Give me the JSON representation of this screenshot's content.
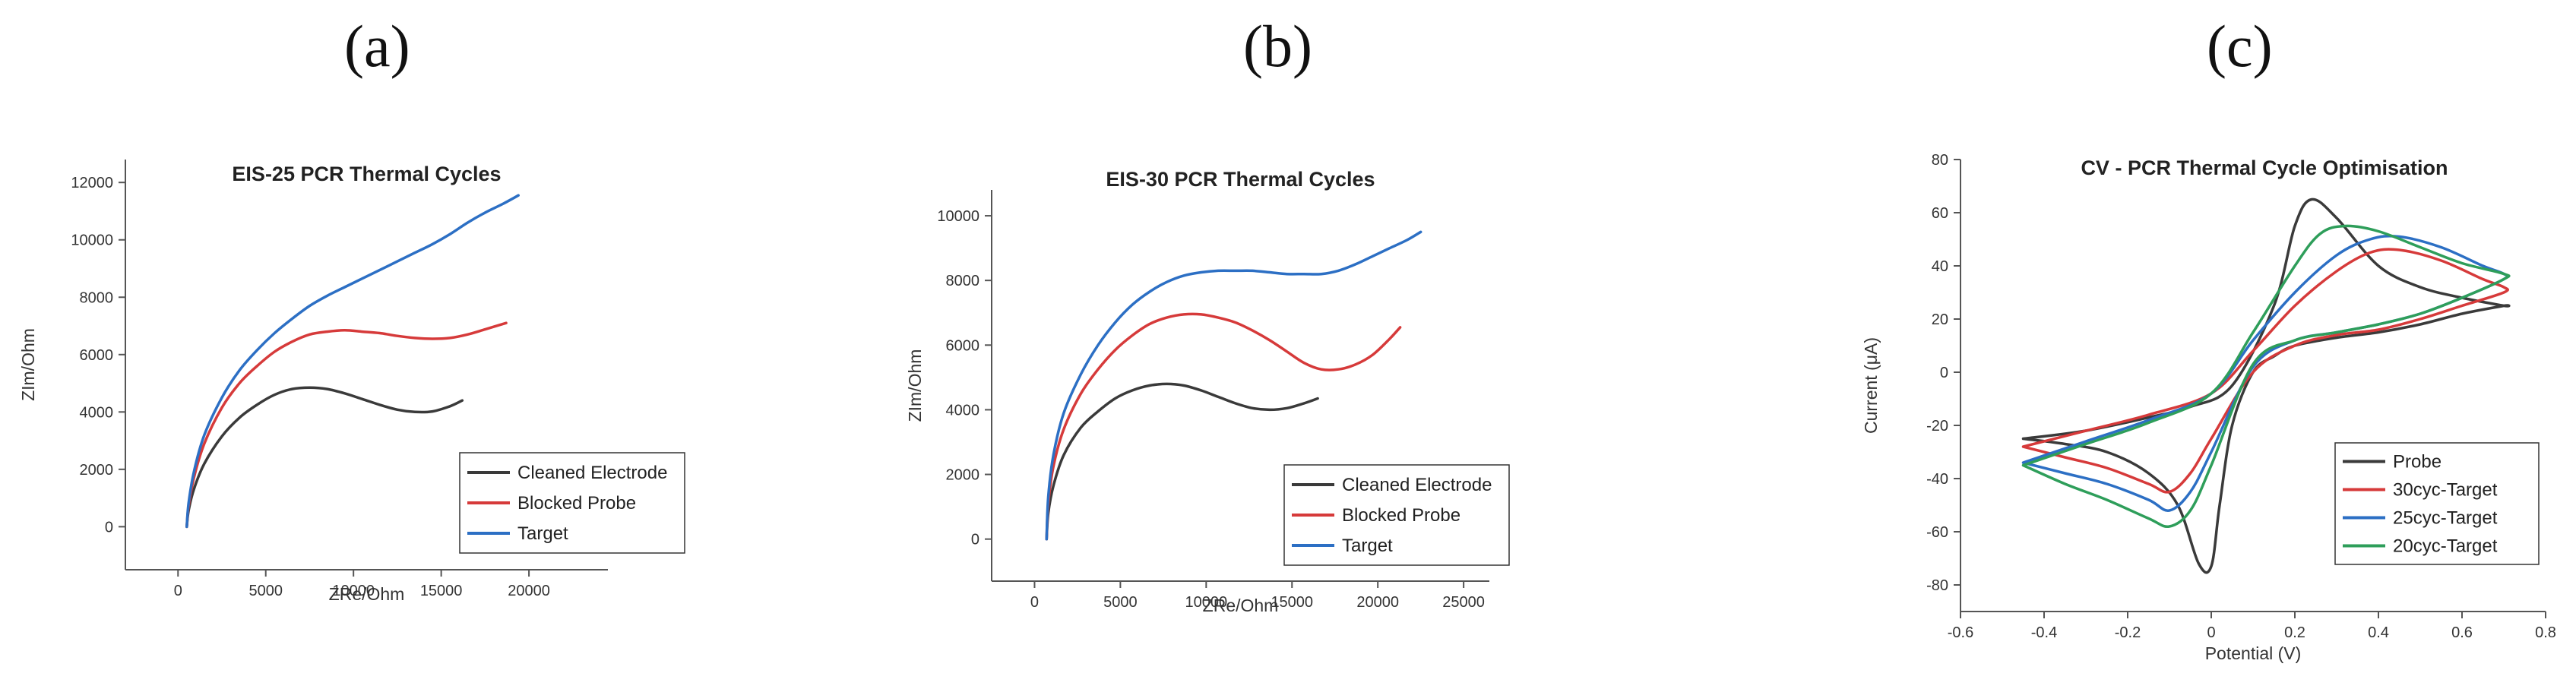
{
  "chart_data": [
    {
      "panel": "(a)",
      "type": "line",
      "title": "EIS-25 PCR Thermal Cycles",
      "xlabel": "ZRe/Ohm",
      "ylabel": "ZIm/Ohm",
      "xlim": [
        -3000,
        24500
      ],
      "ylim": [
        -1500,
        12800
      ],
      "xticks": [
        0,
        5000,
        10000,
        15000,
        20000
      ],
      "yticks": [
        0,
        2000,
        4000,
        6000,
        8000,
        10000,
        12000
      ],
      "series": [
        {
          "name": "Cleaned Electrode",
          "color": "#3a3a3a",
          "x": [
            500,
            600,
            900,
            1500,
            2500,
            3500,
            4500,
            5500,
            6500,
            7500,
            8500,
            9500,
            10500,
            11500,
            12500,
            13500,
            14500,
            15500,
            16200
          ],
          "y": [
            0,
            550,
            1300,
            2200,
            3150,
            3800,
            4250,
            4600,
            4800,
            4850,
            4800,
            4650,
            4450,
            4250,
            4080,
            4000,
            4020,
            4200,
            4400
          ]
        },
        {
          "name": "Blocked Probe",
          "color": "#d63a3a",
          "x": [
            500,
            600,
            900,
            1500,
            2500,
            3500,
            4500,
            5500,
            6500,
            7500,
            8500,
            9500,
            10500,
            11500,
            12500,
            13500,
            14500,
            15500,
            16500,
            17500,
            18700
          ],
          "y": [
            0,
            700,
            1700,
            2900,
            4150,
            5000,
            5600,
            6100,
            6450,
            6700,
            6800,
            6850,
            6800,
            6750,
            6650,
            6580,
            6550,
            6580,
            6700,
            6880,
            7100
          ]
        },
        {
          "name": "Target",
          "color": "#2c6fc4",
          "x": [
            500,
            600,
            900,
            1500,
            2500,
            3500,
            4500,
            5500,
            6500,
            7500,
            8500,
            9500,
            10500,
            11500,
            12500,
            13500,
            14500,
            15500,
            16500,
            17500,
            18500,
            19400
          ],
          "y": [
            0,
            800,
            1900,
            3200,
            4500,
            5450,
            6150,
            6750,
            7250,
            7700,
            8050,
            8350,
            8650,
            8950,
            9250,
            9550,
            9850,
            10200,
            10600,
            10950,
            11250,
            11550
          ]
        }
      ],
      "legend_position": "bottom-right"
    },
    {
      "panel": "(b)",
      "type": "line",
      "title": "EIS-30 PCR Thermal Cycles",
      "xlabel": "ZRe/Ohm",
      "ylabel": "ZIm/Ohm",
      "xlim": [
        -2500,
        26500
      ],
      "ylim": [
        -1300,
        10800
      ],
      "xticks": [
        0,
        5000,
        10000,
        15000,
        20000,
        25000
      ],
      "yticks": [
        0,
        2000,
        4000,
        6000,
        8000,
        10000
      ],
      "series": [
        {
          "name": "Cleaned Electrode",
          "color": "#3a3a3a",
          "x": [
            700,
            800,
            1100,
            1700,
            2700,
            3700,
            4700,
            5700,
            6700,
            7700,
            8700,
            9700,
            10700,
            11700,
            12700,
            13700,
            14700,
            15700,
            16500
          ],
          "y": [
            0,
            800,
            1650,
            2600,
            3450,
            3950,
            4350,
            4600,
            4750,
            4800,
            4750,
            4600,
            4400,
            4200,
            4050,
            4000,
            4050,
            4200,
            4350
          ]
        },
        {
          "name": "Blocked Probe",
          "color": "#d63a3a",
          "x": [
            700,
            800,
            1100,
            1700,
            2700,
            3700,
            4700,
            5700,
            6700,
            7700,
            8700,
            9700,
            10700,
            11700,
            12700,
            13700,
            14700,
            15700,
            16700,
            17700,
            18700,
            19700,
            20700,
            21300
          ],
          "y": [
            0,
            1100,
            2250,
            3400,
            4500,
            5250,
            5850,
            6300,
            6650,
            6850,
            6950,
            6950,
            6850,
            6700,
            6450,
            6150,
            5800,
            5450,
            5250,
            5250,
            5400,
            5700,
            6200,
            6550
          ]
        },
        {
          "name": "Target",
          "color": "#2c6fc4",
          "x": [
            700,
            800,
            1100,
            1700,
            2700,
            3700,
            4700,
            5700,
            6700,
            7700,
            8700,
            9700,
            10700,
            11700,
            12700,
            13700,
            14700,
            15700,
            16700,
            17700,
            18700,
            19700,
            20700,
            21700,
            22500
          ],
          "y": [
            0,
            1300,
            2600,
            3900,
            5100,
            6000,
            6700,
            7250,
            7650,
            7950,
            8150,
            8250,
            8300,
            8300,
            8300,
            8250,
            8200,
            8200,
            8200,
            8300,
            8500,
            8750,
            9000,
            9250,
            9500
          ]
        }
      ],
      "legend_position": "bottom-right"
    },
    {
      "panel": "(c)",
      "type": "line",
      "title": "CV - PCR Thermal Cycle Optimisation",
      "xlabel": "Potential (V)",
      "ylabel": "Current (μA)",
      "xlim": [
        -0.6,
        0.8
      ],
      "ylim": [
        -90,
        80
      ],
      "xticks": [
        -0.6,
        -0.4,
        -0.2,
        0,
        0.2,
        0.4,
        0.6,
        0.8
      ],
      "yticks": [
        -80,
        -60,
        -40,
        -20,
        0,
        20,
        40,
        60,
        80
      ],
      "series": [
        {
          "name": "Probe",
          "color": "#3a3a3a",
          "x": [
            -0.45,
            -0.3,
            -0.15,
            -0.05,
            0.05,
            0.15,
            0.2,
            0.24,
            0.3,
            0.4,
            0.5,
            0.6,
            0.7,
            0.7,
            0.6,
            0.5,
            0.4,
            0.3,
            0.2,
            0.15,
            0.1,
            0.05,
            0.02,
            0.0,
            -0.03,
            -0.08,
            -0.15,
            -0.25,
            -0.35,
            -0.45
          ],
          "y": [
            -25,
            -22,
            -17,
            -13,
            -5,
            25,
            55,
            65,
            58,
            40,
            32,
            28,
            25,
            25,
            22,
            18,
            15,
            13,
            10,
            6,
            0,
            -20,
            -50,
            -73,
            -72,
            -50,
            -38,
            -30,
            -27,
            -25
          ]
        },
        {
          "name": "30cyc-Target",
          "color": "#d63a3a",
          "x": [
            -0.45,
            -0.3,
            -0.15,
            0.0,
            0.1,
            0.2,
            0.3,
            0.38,
            0.45,
            0.55,
            0.65,
            0.7,
            0.7,
            0.6,
            0.5,
            0.4,
            0.3,
            0.2,
            0.1,
            0.0,
            -0.05,
            -0.1,
            -0.15,
            -0.25,
            -0.35,
            -0.45
          ],
          "y": [
            -28,
            -22,
            -16,
            -8,
            8,
            25,
            38,
            45,
            46,
            42,
            35,
            32,
            30,
            25,
            20,
            16,
            14,
            10,
            0,
            -25,
            -38,
            -45,
            -42,
            -36,
            -32,
            -28
          ]
        },
        {
          "name": "25cyc-Target",
          "color": "#2c6fc4",
          "x": [
            -0.45,
            -0.3,
            -0.15,
            0.0,
            0.1,
            0.2,
            0.3,
            0.38,
            0.45,
            0.55,
            0.65,
            0.7,
            0.7,
            0.6,
            0.5,
            0.4,
            0.3,
            0.2,
            0.1,
            0.0,
            -0.05,
            -0.1,
            -0.15,
            -0.25,
            -0.35,
            -0.45
          ],
          "y": [
            -34,
            -26,
            -18,
            -8,
            12,
            30,
            44,
            50,
            51,
            47,
            40,
            37,
            35,
            28,
            22,
            18,
            15,
            12,
            2,
            -30,
            -45,
            -52,
            -48,
            -42,
            -38,
            -34
          ]
        },
        {
          "name": "20cyc-Target",
          "color": "#2e9e5a",
          "x": [
            -0.45,
            -0.3,
            -0.15,
            0.0,
            0.1,
            0.2,
            0.26,
            0.32,
            0.4,
            0.5,
            0.6,
            0.7,
            0.7,
            0.6,
            0.5,
            0.4,
            0.3,
            0.2,
            0.1,
            0.0,
            -0.05,
            -0.1,
            -0.15,
            -0.25,
            -0.35,
            -0.45
          ],
          "y": [
            -35,
            -27,
            -19,
            -8,
            15,
            40,
            52,
            55,
            53,
            47,
            41,
            37,
            35,
            28,
            22,
            18,
            15,
            12,
            3,
            -35,
            -52,
            -58,
            -55,
            -48,
            -42,
            -35
          ]
        }
      ],
      "legend_position": "bottom-right"
    }
  ]
}
